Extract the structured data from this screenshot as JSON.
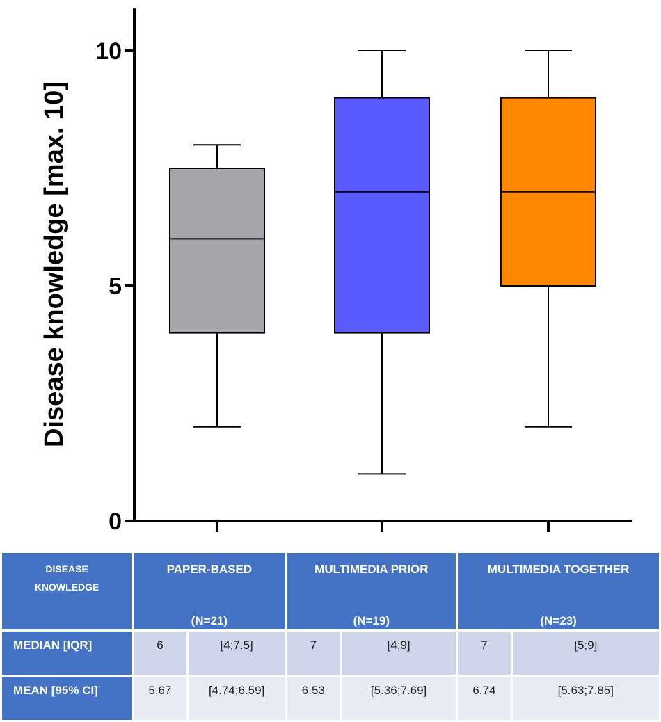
{
  "chart_data": {
    "type": "box",
    "ylabel": "Disease knowledge [max. 10]",
    "ylim": [
      0,
      10.9
    ],
    "yticks": [
      0,
      5,
      10
    ],
    "ytick_labels": [
      "0",
      "5",
      "10"
    ],
    "groups": [
      {
        "name": "Paper-based",
        "min": 2,
        "q1": 4,
        "median": 6,
        "q3": 7.5,
        "max": 8,
        "color": "#a6a6aa"
      },
      {
        "name": "Multimedia prior",
        "min": 1,
        "q1": 4,
        "median": 7,
        "q3": 9,
        "max": 10,
        "color": "#5a5bff"
      },
      {
        "name": "Multimedia together",
        "min": 2,
        "q1": 5,
        "median": 7,
        "q3": 9,
        "max": 10,
        "color": "#ff8800"
      }
    ]
  },
  "table": {
    "corner_line1": "DISEASE",
    "corner_line2": "KNOWLEDGE",
    "columns": [
      {
        "title": "PAPER-BASED",
        "n": "(N=21)"
      },
      {
        "title": "MULTIMEDIA PRIOR",
        "n": "(N=19)"
      },
      {
        "title": "MULTIMEDIA TOGETHER",
        "n": "(N=23)"
      }
    ],
    "rows": [
      {
        "label": "MEDIAN [IQR]",
        "cells": [
          "6",
          "[4;7.5]",
          "7",
          "[4;9]",
          "7",
          "[5;9]"
        ]
      },
      {
        "label": "MEAN [95% CI]",
        "cells": [
          "5.67",
          "[4.74;6.59]",
          "6.53",
          "[5.36;7.69]",
          "6.74",
          "[5.63;7.85]"
        ]
      }
    ]
  }
}
